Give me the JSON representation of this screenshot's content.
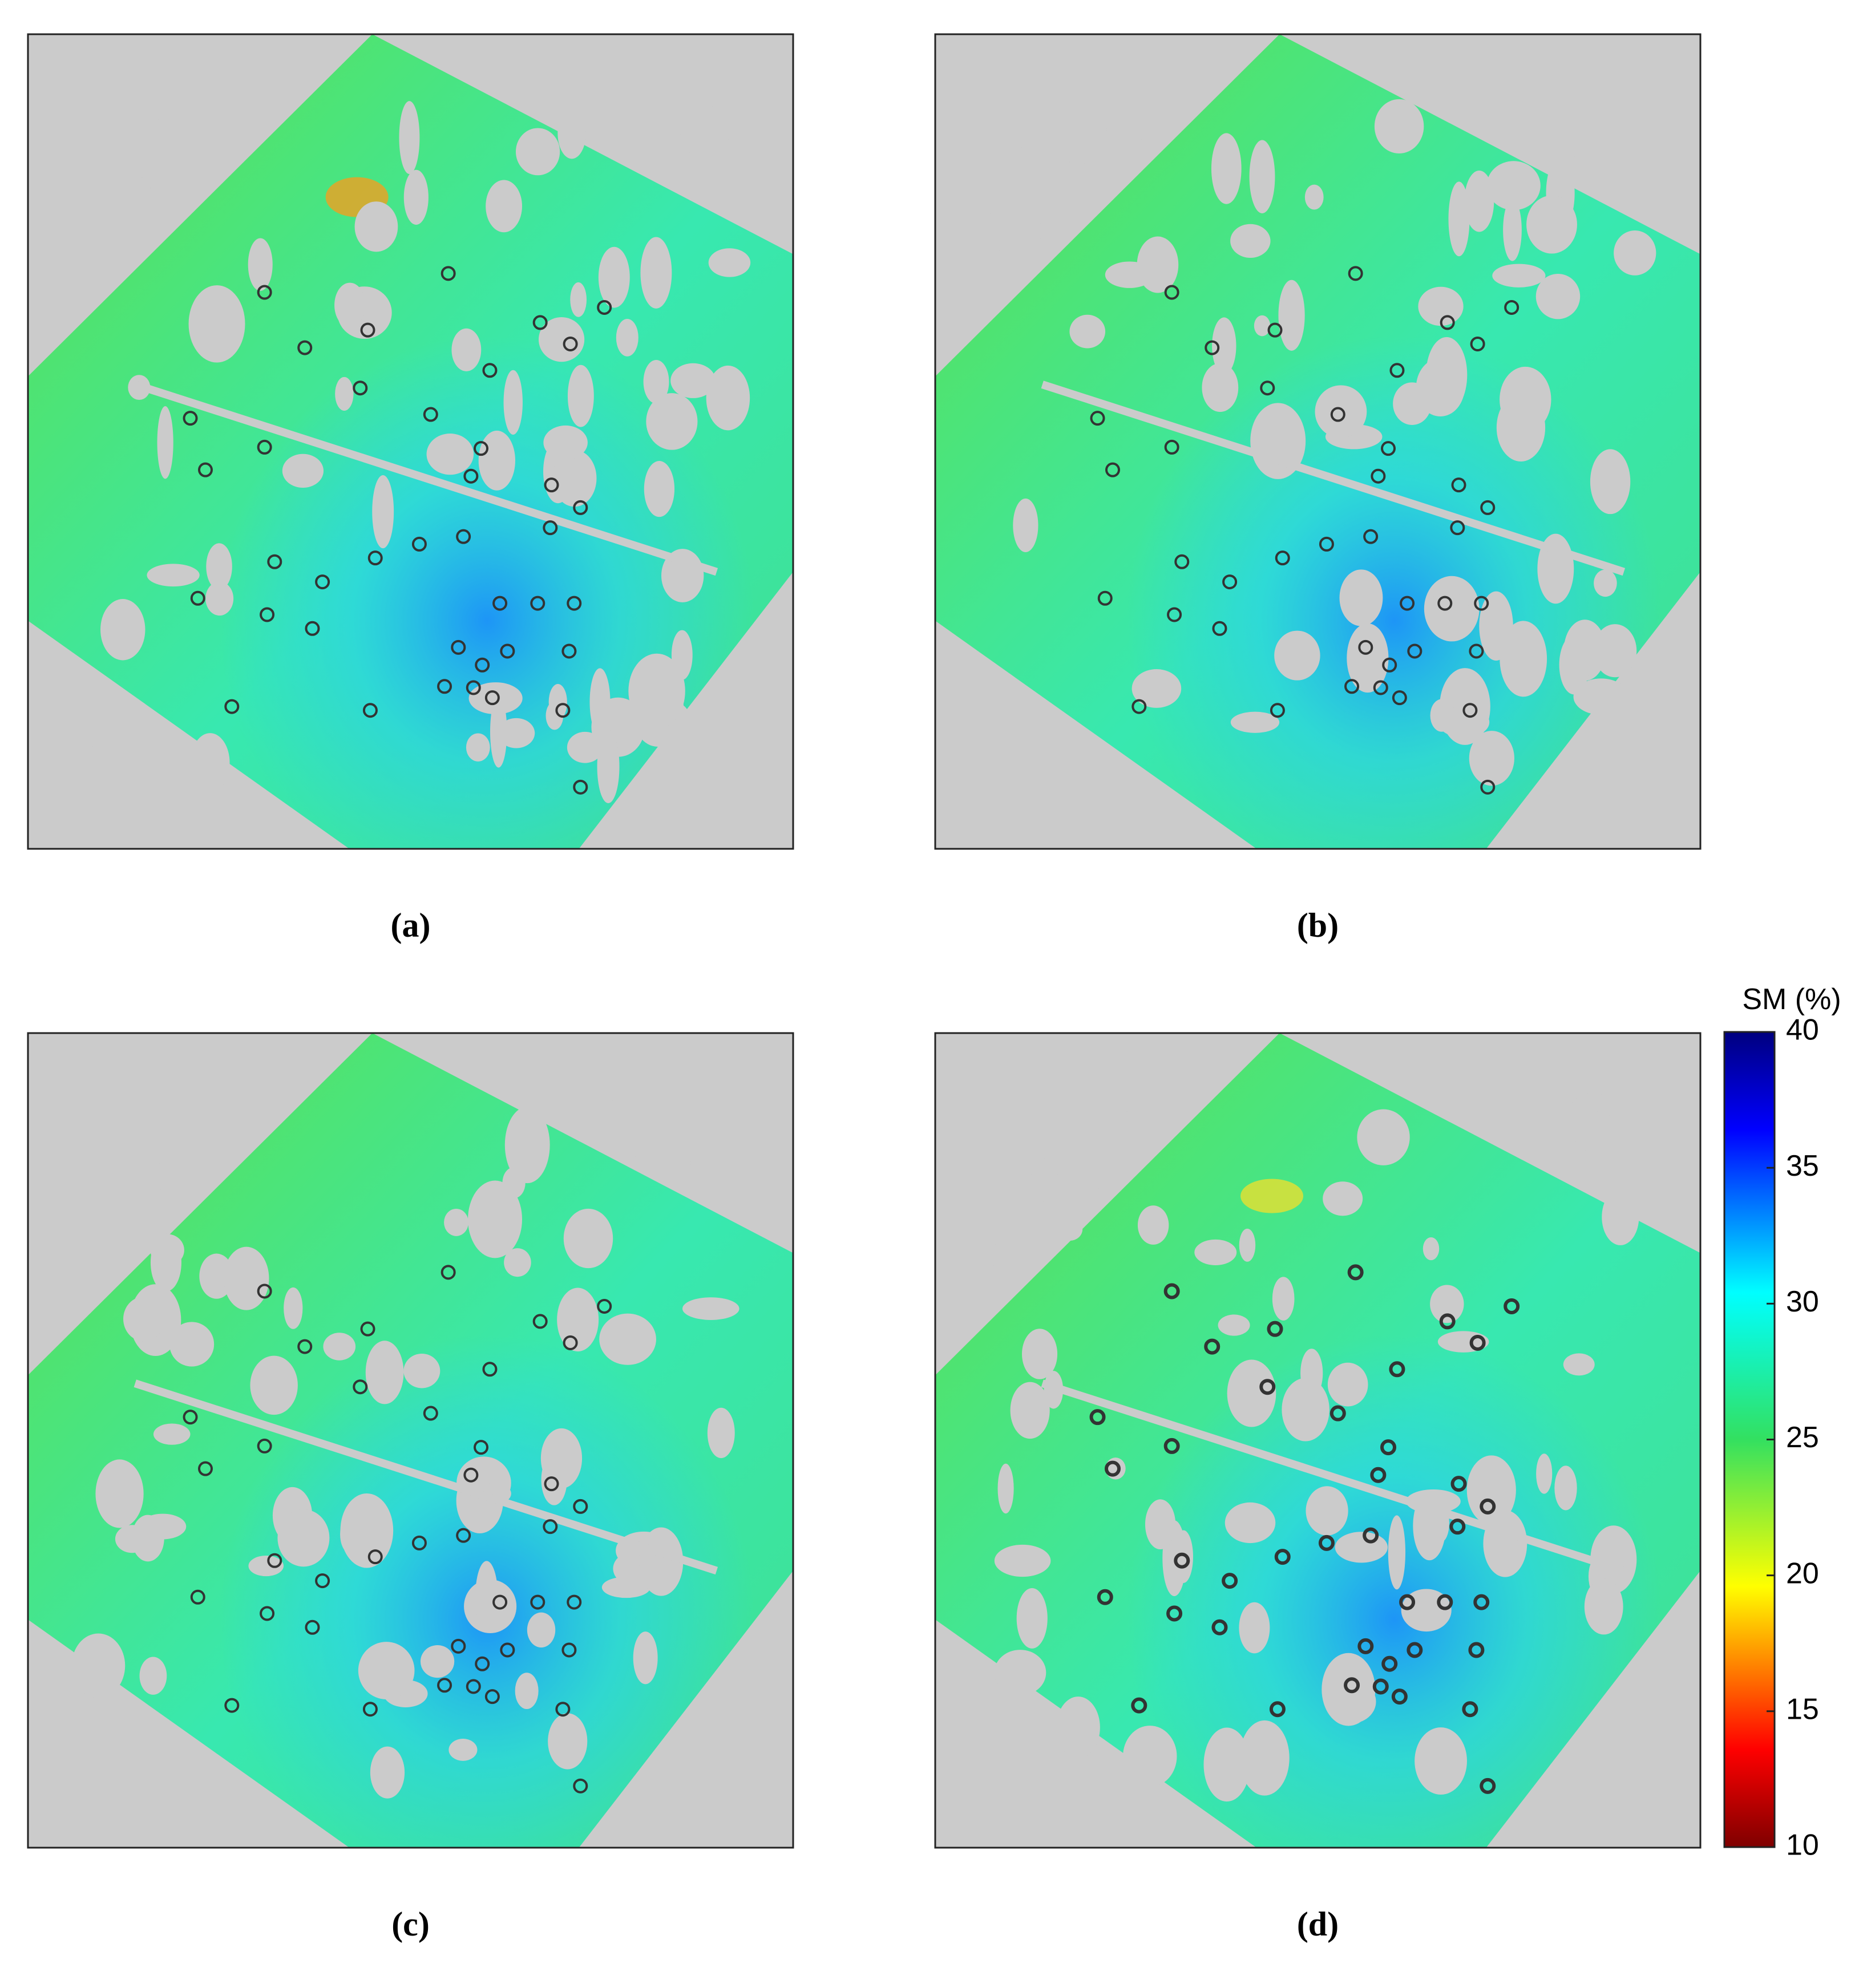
{
  "panels": [
    {
      "label": "(a)"
    },
    {
      "label": "(b)"
    },
    {
      "label": "(c)"
    },
    {
      "label": "(d)"
    }
  ],
  "colorbar": {
    "title": "SM (%)",
    "lim": [
      10,
      40
    ],
    "ticks": [
      10,
      15,
      20,
      25,
      30,
      35,
      40
    ]
  }
}
